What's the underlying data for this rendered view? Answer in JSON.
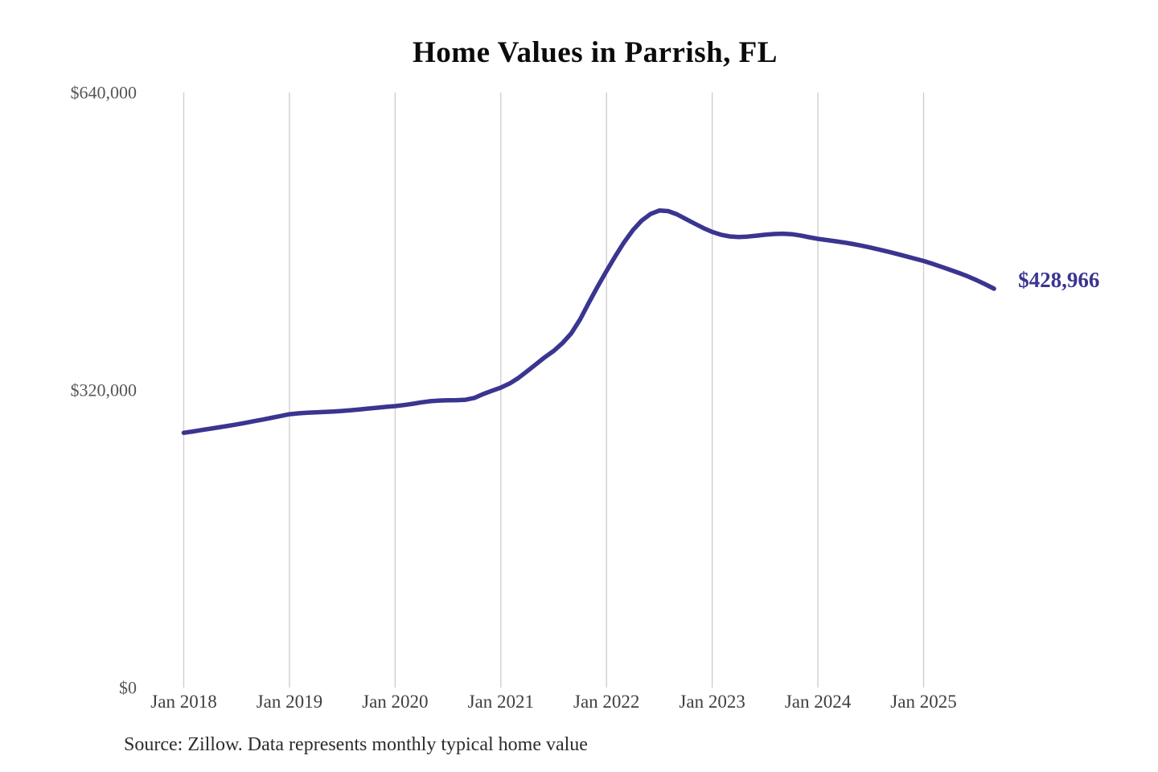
{
  "page": {
    "title": "Home Values in Parrish, FL",
    "source_note": "Source: Zillow. Data represents monthly typical home value"
  },
  "chart_data": {
    "type": "line",
    "title": "Home Values in Parrish, FL",
    "series_name": "Monthly typical home value",
    "unit": "USD",
    "frequency": "monthly",
    "start_month": "Jan 2018",
    "end_month": "Sep 2025",
    "current_value": 428966,
    "current_value_label": "$428,966",
    "ylim": [
      0,
      640000
    ],
    "grid": "vertical-only",
    "legend": "none",
    "line_color": "#3a3590",
    "end_label_color": "#3a3590",
    "grid_color": "#cccccc",
    "y_axis_text_color": "#565656",
    "x_axis_text_color": "#3f3f3f",
    "y_ticks": [
      {
        "value": 0,
        "label": "$0"
      },
      {
        "value": 320000,
        "label": "$320,000"
      },
      {
        "value": 640000,
        "label": "$640,000"
      }
    ],
    "x_ticks": [
      {
        "month_index": 0,
        "label": "Jan 2018"
      },
      {
        "month_index": 12,
        "label": "Jan 2019"
      },
      {
        "month_index": 24,
        "label": "Jan 2020"
      },
      {
        "month_index": 36,
        "label": "Jan 2021"
      },
      {
        "month_index": 48,
        "label": "Jan 2022"
      },
      {
        "month_index": 60,
        "label": "Jan 2023"
      },
      {
        "month_index": 72,
        "label": "Jan 2024"
      },
      {
        "month_index": 84,
        "label": "Jan 2025"
      }
    ],
    "months": [
      "Jan 2018",
      "Feb 2018",
      "Mar 2018",
      "Apr 2018",
      "May 2018",
      "Jun 2018",
      "Jul 2018",
      "Aug 2018",
      "Sep 2018",
      "Oct 2018",
      "Nov 2018",
      "Dec 2018",
      "Jan 2019",
      "Feb 2019",
      "Mar 2019",
      "Apr 2019",
      "May 2019",
      "Jun 2019",
      "Jul 2019",
      "Aug 2019",
      "Sep 2019",
      "Oct 2019",
      "Nov 2019",
      "Dec 2019",
      "Jan 2020",
      "Feb 2020",
      "Mar 2020",
      "Apr 2020",
      "May 2020",
      "Jun 2020",
      "Jul 2020",
      "Aug 2020",
      "Sep 2020",
      "Oct 2020",
      "Nov 2020",
      "Dec 2020",
      "Jan 2021",
      "Feb 2021",
      "Mar 2021",
      "Apr 2021",
      "May 2021",
      "Jun 2021",
      "Jul 2021",
      "Aug 2021",
      "Sep 2021",
      "Oct 2021",
      "Nov 2021",
      "Dec 2021",
      "Jan 2022",
      "Feb 2022",
      "Mar 2022",
      "Apr 2022",
      "May 2022",
      "Jun 2022",
      "Jul 2022",
      "Aug 2022",
      "Sep 2022",
      "Oct 2022",
      "Nov 2022",
      "Dec 2022",
      "Jan 2023",
      "Feb 2023",
      "Mar 2023",
      "Apr 2023",
      "May 2023",
      "Jun 2023",
      "Jul 2023",
      "Aug 2023",
      "Sep 2023",
      "Oct 2023",
      "Nov 2023",
      "Dec 2023",
      "Jan 2024",
      "Feb 2024",
      "Mar 2024",
      "Apr 2024",
      "May 2024",
      "Jun 2024",
      "Jul 2024",
      "Aug 2024",
      "Sep 2024",
      "Oct 2024",
      "Nov 2024",
      "Dec 2024",
      "Jan 2025",
      "Feb 2025",
      "Mar 2025",
      "Apr 2025",
      "May 2025",
      "Jun 2025",
      "Jul 2025",
      "Aug 2025",
      "Sep 2025"
    ],
    "values": [
      274000,
      275400,
      276900,
      278400,
      279900,
      281400,
      283000,
      284700,
      286500,
      288300,
      290200,
      292100,
      294000,
      294900,
      295500,
      296000,
      296400,
      296900,
      297500,
      298300,
      299200,
      300100,
      301000,
      301900,
      302700,
      303800,
      305200,
      306800,
      308000,
      308700,
      308900,
      309100,
      309500,
      311500,
      315700,
      319200,
      322600,
      327000,
      333000,
      340200,
      347800,
      355300,
      362000,
      370500,
      381000,
      396000,
      414000,
      431500,
      448000,
      464000,
      479000,
      492000,
      502200,
      509300,
      513000,
      512400,
      509000,
      504000,
      499000,
      494200,
      490000,
      487000,
      485200,
      484500,
      485000,
      486000,
      487000,
      487800,
      488100,
      487600,
      486200,
      484300,
      482600,
      481300,
      480000,
      478600,
      477000,
      475200,
      473200,
      471000,
      468700,
      466300,
      463800,
      461300,
      458800,
      455800,
      452600,
      449300,
      445900,
      442300,
      438200,
      433700,
      428966
    ]
  }
}
